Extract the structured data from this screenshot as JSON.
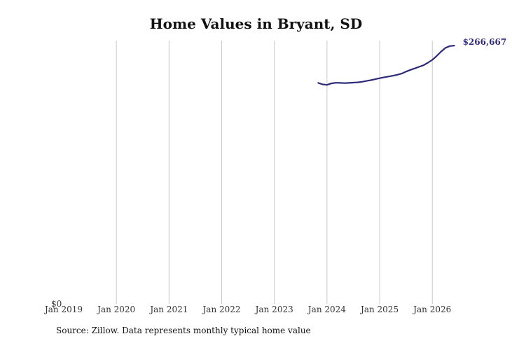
{
  "chart_data": {
    "type": "line",
    "title": "Home Values in Bryant, SD",
    "xlabel": "",
    "ylabel": "",
    "x_ticks": [
      "Jan 2019",
      "Jan 2020",
      "Jan 2021",
      "Jan 2022",
      "Jan 2023",
      "Jan 2024",
      "Jan 2025",
      "Jan 2026"
    ],
    "y_tick_label": "$0",
    "ylim": [
      0,
      266667
    ],
    "grid": "vertical",
    "series": [
      {
        "color": "#2e2a7a",
        "end_label": "$266,667",
        "points": [
          {
            "x": "2023-11",
            "y": 225000
          },
          {
            "x": "2023-12",
            "y": 223500
          },
          {
            "x": "2024-01",
            "y": 223000
          },
          {
            "x": "2024-02",
            "y": 224500
          },
          {
            "x": "2024-03",
            "y": 225200
          },
          {
            "x": "2024-04",
            "y": 225000
          },
          {
            "x": "2024-05",
            "y": 224800
          },
          {
            "x": "2024-06",
            "y": 225000
          },
          {
            "x": "2024-07",
            "y": 225300
          },
          {
            "x": "2024-08",
            "y": 225600
          },
          {
            "x": "2024-09",
            "y": 226200
          },
          {
            "x": "2024-10",
            "y": 227000
          },
          {
            "x": "2024-11",
            "y": 227800
          },
          {
            "x": "2024-12",
            "y": 228800
          },
          {
            "x": "2025-01",
            "y": 229800
          },
          {
            "x": "2025-02",
            "y": 230700
          },
          {
            "x": "2025-03",
            "y": 231500
          },
          {
            "x": "2025-04",
            "y": 232300
          },
          {
            "x": "2025-05",
            "y": 233300
          },
          {
            "x": "2025-06",
            "y": 234500
          },
          {
            "x": "2025-07",
            "y": 236500
          },
          {
            "x": "2025-08",
            "y": 238300
          },
          {
            "x": "2025-09",
            "y": 239800
          },
          {
            "x": "2025-10",
            "y": 241400
          },
          {
            "x": "2025-11",
            "y": 243000
          },
          {
            "x": "2025-12",
            "y": 245600
          },
          {
            "x": "2026-01",
            "y": 248500
          },
          {
            "x": "2026-02",
            "y": 252500
          },
          {
            "x": "2026-03",
            "y": 257000
          },
          {
            "x": "2026-04",
            "y": 260700
          },
          {
            "x": "2026-05",
            "y": 262500
          },
          {
            "x": "2026-06",
            "y": 263000
          }
        ]
      }
    ]
  },
  "source_note": "Source: Zillow. Data represents monthly typical home value"
}
